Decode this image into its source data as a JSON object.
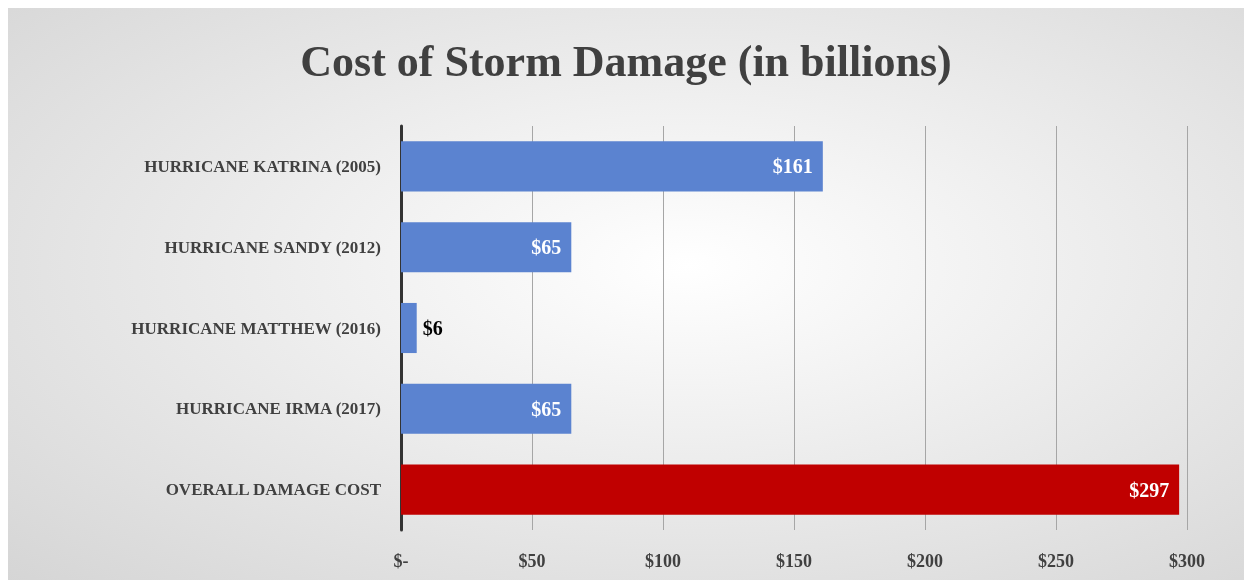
{
  "chart_data": {
    "type": "bar",
    "orientation": "horizontal",
    "title": "Cost of Storm Damage (in billions)",
    "categories": [
      "HURRICANE KATRINA (2005)",
      "HURRICANE SANDY (2012)",
      "HURRICANE MATTHEW (2016)",
      "HURRICANE IRMA (2017)",
      "OVERALL DAMAGE COST"
    ],
    "values": [
      161,
      65,
      6,
      65,
      297
    ],
    "colors": [
      "#5b83d0",
      "#5b83d0",
      "#5b83d0",
      "#5b83d0",
      "#c00000"
    ],
    "value_labels": [
      "$161",
      "$65",
      "$6",
      "$65",
      "$297"
    ],
    "xlim": [
      0,
      300
    ],
    "xticks": [
      {
        "value": 0,
        "label": "$-"
      },
      {
        "value": 50,
        "label": "$50"
      },
      {
        "value": 100,
        "label": "$100"
      },
      {
        "value": 150,
        "label": "$150"
      },
      {
        "value": 200,
        "label": "$200"
      },
      {
        "value": 250,
        "label": "$250"
      },
      {
        "value": 300,
        "label": "$300"
      }
    ],
    "grid": "x"
  }
}
